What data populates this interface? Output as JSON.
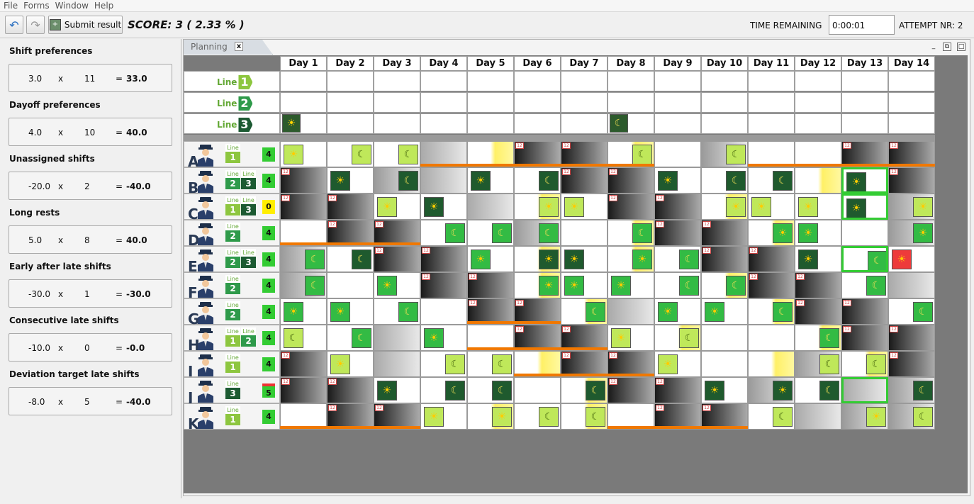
{
  "menu": [
    "File",
    "Forms",
    "Window",
    "Help"
  ],
  "toolbar": {
    "submit_label": "Submit result",
    "score_text": "SCORE: 3  ( 2.33 % )",
    "time_label": "TIME REMAINING",
    "time_value": "0:00:01",
    "attempt_label": "ATTEMPT NR: 2"
  },
  "preferences": [
    {
      "title": "Shift preferences",
      "weight": "3.0",
      "x": "x",
      "count": "11",
      "eq": "=",
      "result": "33.0"
    },
    {
      "title": "Dayoff preferences",
      "weight": "4.0",
      "x": "x",
      "count": "10",
      "eq": "=",
      "result": "40.0"
    },
    {
      "title": "Unassigned shifts",
      "weight": "-20.0",
      "x": "x",
      "count": "2",
      "eq": "=",
      "result": "-40.0"
    },
    {
      "title": "Long rests",
      "weight": "5.0",
      "x": "x",
      "count": "8",
      "eq": "=",
      "result": "40.0"
    },
    {
      "title": "Early after late shifts",
      "weight": "-30.0",
      "x": "x",
      "count": "1",
      "eq": "=",
      "result": "-30.0"
    },
    {
      "title": "Consecutive late shifts",
      "weight": "-10.0",
      "x": "x",
      "count": "0",
      "eq": "=",
      "result": "-0.0"
    },
    {
      "title": "Deviation target late shifts",
      "weight": "-8.0",
      "x": "x",
      "count": "5",
      "eq": "=",
      "result": "-40.0"
    }
  ],
  "tab": {
    "label": "Planning",
    "close": "x"
  },
  "days": [
    "Day 1",
    "Day 2",
    "Day 3",
    "Day 4",
    "Day 5",
    "Day 6",
    "Day 7",
    "Day 8",
    "Day 9",
    "Day 10",
    "Day 11",
    "Day 12",
    "Day 13",
    "Day 14"
  ],
  "lines": [
    {
      "text": "Line",
      "num": "1",
      "color": "#8dc63f"
    },
    {
      "text": "Line",
      "num": "2",
      "color": "#2e9a4a"
    },
    {
      "text": "Line",
      "num": "3",
      "color": "#1c5a32"
    }
  ],
  "unassigned": [
    {
      "line": 3,
      "day": 1,
      "shift": "early"
    },
    {
      "line": 3,
      "day": 8,
      "shift": "late"
    }
  ],
  "employees": [
    {
      "letter": "A",
      "lines": [
        "1"
      ],
      "count": "4",
      "count_color": "#33cc33"
    },
    {
      "letter": "B",
      "lines": [
        "2",
        "3"
      ],
      "count": "4",
      "count_color": "#33cc33"
    },
    {
      "letter": "C",
      "lines": [
        "1",
        "3"
      ],
      "count": "0",
      "count_color": "#ffee00"
    },
    {
      "letter": "D",
      "lines": [
        "2"
      ],
      "count": "4",
      "count_color": "#33cc33"
    },
    {
      "letter": "E",
      "lines": [
        "2",
        "3"
      ],
      "count": "4",
      "count_color": "#33cc33"
    },
    {
      "letter": "F",
      "lines": [
        "2"
      ],
      "count": "4",
      "count_color": "#33cc33"
    },
    {
      "letter": "G",
      "lines": [
        "2"
      ],
      "count": "4",
      "count_color": "#33cc33"
    },
    {
      "letter": "H",
      "lines": [
        "1",
        "2"
      ],
      "count": "4",
      "count_color": "#33cc33"
    },
    {
      "letter": "I",
      "lines": [
        "1"
      ],
      "count": "4",
      "count_color": "#33cc33"
    },
    {
      "letter": "J",
      "lines": [
        "3"
      ],
      "count": "5",
      "count_color": "#33cc33"
    },
    {
      "letter": "K",
      "lines": [
        "1"
      ],
      "count": "4",
      "count_color": "#33cc33"
    }
  ],
  "schedule": [
    [
      "E1",
      "L1",
      "L1",
      "grey",
      "yel",
      "dark12",
      "dark12",
      "L1y",
      "white",
      "L1g",
      "white",
      "white",
      "dark12",
      "dark12"
    ],
    [
      "dark12",
      "E3",
      "L3g",
      "grey",
      "E3",
      "L3",
      "dark12",
      "dark12",
      "E3",
      "L3",
      "L3",
      "yel",
      "E3sel",
      "dark12"
    ],
    [
      "dark12",
      "dark12",
      "E1",
      "E3",
      "grey",
      "E1y",
      "E1",
      "dark12",
      "dark12",
      "E1y",
      "E1",
      "E1",
      "E3sel",
      "E1g"
    ],
    [
      "white",
      "dark12",
      "dark12",
      "L2",
      "L2",
      "L2g",
      "white",
      "L2y",
      "dark12",
      "dark12",
      "E2y",
      "E2",
      "white",
      "E2g"
    ],
    [
      "L2g",
      "L3",
      "dark12",
      "dark12",
      "E2",
      "E3y",
      "E3",
      "E2y",
      "L2",
      "dark12",
      "dark12",
      "E3",
      "L2sel",
      "E2red"
    ],
    [
      "L2g",
      "white",
      "E2",
      "dark12",
      "dark12",
      "E2y",
      "E2",
      "E2",
      "L2",
      "L2y",
      "dark12",
      "dark12",
      "L2",
      "grey"
    ],
    [
      "E2",
      "E2",
      "L2",
      "white",
      "dark12",
      "dark12",
      "L2y",
      "grey",
      "E2",
      "E2",
      "L2y",
      "dark12",
      "dark12",
      "L2"
    ],
    [
      "L1",
      "L2",
      "grey",
      "E2",
      "white",
      "dark12",
      "dark12",
      "E1",
      "L1y",
      "white",
      "white",
      "L2y",
      "dark12",
      "dark12"
    ],
    [
      "dark12",
      "E1",
      "grey",
      "L1",
      "L1",
      "yel",
      "dark12",
      "dark12",
      "E1",
      "white",
      "yel",
      "L1g",
      "L1y",
      "dark12"
    ],
    [
      "dark12",
      "dark12",
      "E3",
      "L3",
      "L3",
      "white",
      "L3y",
      "dark12",
      "dark12",
      "E3",
      "E3g",
      "L3",
      "greysel",
      "L3g"
    ],
    [
      "white",
      "dark12",
      "dark12",
      "E1",
      "E1y",
      "L1",
      "L1y",
      "white",
      "dark12",
      "dark12",
      "L1",
      "grey",
      "E1g",
      "L1g"
    ]
  ]
}
